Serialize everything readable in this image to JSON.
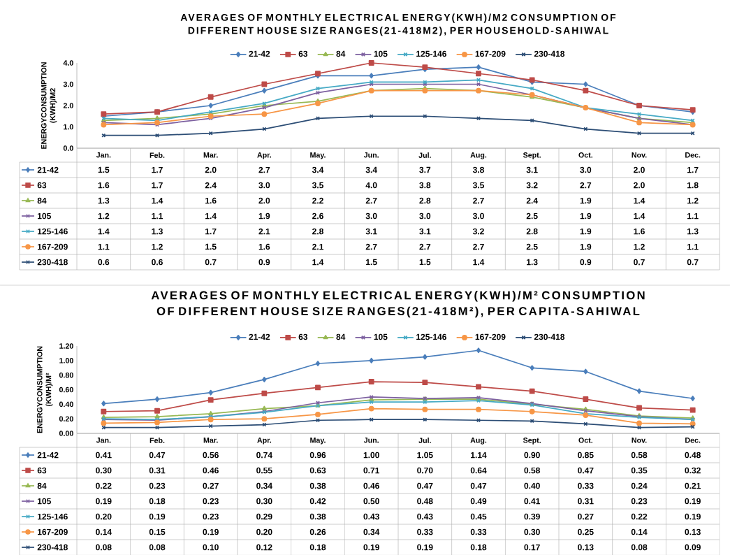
{
  "chart_data": [
    {
      "type": "line",
      "title": "AVERAGES OF MONTHLY ELECTRICAL ENERGY(KWH)/M2 CONSUMPTION OF DIFFERENT HOUSE SIZE RANGES(21-418M2), PER HOUSEHOLD-SAHIWAL",
      "ylabel": "ENERGYCONSUMPTION (KWH)/M2",
      "categories": [
        "Jan.",
        "Feb.",
        "Mar.",
        "Apr.",
        "May.",
        "Jun.",
        "Jul.",
        "Aug.",
        "Sept.",
        "Oct.",
        "Nov.",
        "Dec."
      ],
      "ylim": [
        0,
        4
      ],
      "yticks": [
        {
          "value": 0,
          "label": "0.0"
        },
        {
          "value": 1,
          "label": "1.0"
        },
        {
          "value": 2,
          "label": "2.0"
        },
        {
          "value": 3,
          "label": "3.0"
        },
        {
          "value": 4,
          "label": "4.0"
        }
      ],
      "legend": "top",
      "series": [
        {
          "name": "21-42",
          "color": "#4a7ebb",
          "marker": "diamond",
          "values": [
            1.5,
            1.7,
            2.0,
            2.7,
            3.4,
            3.4,
            3.7,
            3.8,
            3.1,
            3.0,
            2.0,
            1.7
          ],
          "value_labels": [
            "1.5",
            "1.7",
            "2.0",
            "2.7",
            "3.4",
            "3.4",
            "3.7",
            "3.8",
            "3.1",
            "3.0",
            "2.0",
            "1.7"
          ]
        },
        {
          "name": "63",
          "color": "#be4b48",
          "marker": "square",
          "values": [
            1.6,
            1.7,
            2.4,
            3.0,
            3.5,
            4.0,
            3.8,
            3.5,
            3.2,
            2.7,
            2.0,
            1.8
          ],
          "value_labels": [
            "1.6",
            "1.7",
            "2.4",
            "3.0",
            "3.5",
            "4.0",
            "3.8",
            "3.5",
            "3.2",
            "2.7",
            "2.0",
            "1.8"
          ]
        },
        {
          "name": "84",
          "color": "#98b954",
          "marker": "triangle",
          "values": [
            1.3,
            1.4,
            1.6,
            2.0,
            2.2,
            2.7,
            2.8,
            2.7,
            2.4,
            1.9,
            1.4,
            1.2
          ],
          "value_labels": [
            "1.3",
            "1.4",
            "1.6",
            "2.0",
            "2.2",
            "2.7",
            "2.8",
            "2.7",
            "2.4",
            "1.9",
            "1.4",
            "1.2"
          ]
        },
        {
          "name": "105",
          "color": "#7d60a0",
          "marker": "cross",
          "values": [
            1.2,
            1.1,
            1.4,
            1.9,
            2.6,
            3.0,
            3.0,
            3.0,
            2.5,
            1.9,
            1.4,
            1.1
          ],
          "value_labels": [
            "1.2",
            "1.1",
            "1.4",
            "1.9",
            "2.6",
            "3.0",
            "3.0",
            "3.0",
            "2.5",
            "1.9",
            "1.4",
            "1.1"
          ]
        },
        {
          "name": "125-146",
          "color": "#46aac5",
          "marker": "cross",
          "values": [
            1.4,
            1.3,
            1.7,
            2.1,
            2.8,
            3.1,
            3.1,
            3.2,
            2.8,
            1.9,
            1.6,
            1.3
          ],
          "value_labels": [
            "1.4",
            "1.3",
            "1.7",
            "2.1",
            "2.8",
            "3.1",
            "3.1",
            "3.2",
            "2.8",
            "1.9",
            "1.6",
            "1.3"
          ]
        },
        {
          "name": "167-209",
          "color": "#f79646",
          "marker": "circle",
          "values": [
            1.1,
            1.2,
            1.5,
            1.6,
            2.1,
            2.7,
            2.7,
            2.7,
            2.5,
            1.9,
            1.2,
            1.1
          ],
          "value_labels": [
            "1.1",
            "1.2",
            "1.5",
            "1.6",
            "2.1",
            "2.7",
            "2.7",
            "2.7",
            "2.5",
            "1.9",
            "1.2",
            "1.1"
          ]
        },
        {
          "name": "230-418",
          "color": "#2c4d75",
          "marker": "cross",
          "values": [
            0.6,
            0.6,
            0.7,
            0.9,
            1.4,
            1.5,
            1.5,
            1.4,
            1.3,
            0.9,
            0.7,
            0.7
          ],
          "value_labels": [
            "0.6",
            "0.6",
            "0.7",
            "0.9",
            "1.4",
            "1.5",
            "1.5",
            "1.4",
            "1.3",
            "0.9",
            "0.7",
            "0.7"
          ]
        }
      ]
    },
    {
      "type": "line",
      "title": "AVERAGES OF MONTHLY ELECTRICAL ENERGY(KWH)/M² CONSUMPTION OF DIFFERENT HOUSE SIZE RANGES(21-418M²), PER CAPITA-SAHIWAL",
      "ylabel": "ENERGYCONSUMPTION (KWH)/M²",
      "categories": [
        "Jan.",
        "Feb.",
        "Mar.",
        "Apr.",
        "May.",
        "Jun.",
        "Jul.",
        "Aug.",
        "Sept.",
        "Oct.",
        "Nov.",
        "Dec."
      ],
      "ylim": [
        0,
        1.2
      ],
      "yticks": [
        {
          "value": 0,
          "label": "0.00"
        },
        {
          "value": 0.2,
          "label": "0.20"
        },
        {
          "value": 0.4,
          "label": "0.40"
        },
        {
          "value": 0.6,
          "label": "0.60"
        },
        {
          "value": 0.8,
          "label": "0.80"
        },
        {
          "value": 1.0,
          "label": "1.00"
        },
        {
          "value": 1.2,
          "label": "1.20"
        }
      ],
      "legend": "top",
      "series": [
        {
          "name": "21-42",
          "color": "#4a7ebb",
          "marker": "diamond",
          "values": [
            0.41,
            0.47,
            0.56,
            0.74,
            0.96,
            1.0,
            1.05,
            1.14,
            0.9,
            0.85,
            0.58,
            0.48
          ],
          "value_labels": [
            "0.41",
            "0.47",
            "0.56",
            "0.74",
            "0.96",
            "1.00",
            "1.05",
            "1.14",
            "0.90",
            "0.85",
            "0.58",
            "0.48"
          ]
        },
        {
          "name": "63",
          "color": "#be4b48",
          "marker": "square",
          "values": [
            0.3,
            0.31,
            0.46,
            0.55,
            0.63,
            0.71,
            0.7,
            0.64,
            0.58,
            0.47,
            0.35,
            0.32
          ],
          "value_labels": [
            "0.30",
            "0.31",
            "0.46",
            "0.55",
            "0.63",
            "0.71",
            "0.70",
            "0.64",
            "0.58",
            "0.47",
            "0.35",
            "0.32"
          ]
        },
        {
          "name": "84",
          "color": "#98b954",
          "marker": "triangle",
          "values": [
            0.22,
            0.23,
            0.27,
            0.34,
            0.38,
            0.46,
            0.47,
            0.47,
            0.4,
            0.33,
            0.24,
            0.21
          ],
          "value_labels": [
            "0.22",
            "0.23",
            "0.27",
            "0.34",
            "0.38",
            "0.46",
            "0.47",
            "0.47",
            "0.40",
            "0.33",
            "0.24",
            "0.21"
          ]
        },
        {
          "name": "105",
          "color": "#7d60a0",
          "marker": "cross",
          "values": [
            0.19,
            0.18,
            0.23,
            0.3,
            0.42,
            0.5,
            0.48,
            0.49,
            0.41,
            0.31,
            0.23,
            0.19
          ],
          "value_labels": [
            "0.19",
            "0.18",
            "0.23",
            "0.30",
            "0.42",
            "0.50",
            "0.48",
            "0.49",
            "0.41",
            "0.31",
            "0.23",
            "0.19"
          ]
        },
        {
          "name": "125-146",
          "color": "#46aac5",
          "marker": "cross",
          "values": [
            0.2,
            0.19,
            0.23,
            0.29,
            0.38,
            0.43,
            0.43,
            0.45,
            0.39,
            0.27,
            0.22,
            0.19
          ],
          "value_labels": [
            "0.20",
            "0.19",
            "0.23",
            "0.29",
            "0.38",
            "0.43",
            "0.43",
            "0.45",
            "0.39",
            "0.27",
            "0.22",
            "0.19"
          ]
        },
        {
          "name": "167-209",
          "color": "#f79646",
          "marker": "circle",
          "values": [
            0.14,
            0.15,
            0.19,
            0.2,
            0.26,
            0.34,
            0.33,
            0.33,
            0.3,
            0.25,
            0.14,
            0.13
          ],
          "value_labels": [
            "0.14",
            "0.15",
            "0.19",
            "0.20",
            "0.26",
            "0.34",
            "0.33",
            "0.33",
            "0.30",
            "0.25",
            "0.14",
            "0.13"
          ]
        },
        {
          "name": "230-418",
          "color": "#2c4d75",
          "marker": "cross",
          "values": [
            0.08,
            0.08,
            0.1,
            0.12,
            0.18,
            0.19,
            0.19,
            0.18,
            0.17,
            0.13,
            0.08,
            0.09
          ],
          "value_labels": [
            "0.08",
            "0.08",
            "0.10",
            "0.12",
            "0.18",
            "0.19",
            "0.19",
            "0.18",
            "0.17",
            "0.13",
            "0.08",
            "0.09"
          ]
        }
      ]
    }
  ]
}
